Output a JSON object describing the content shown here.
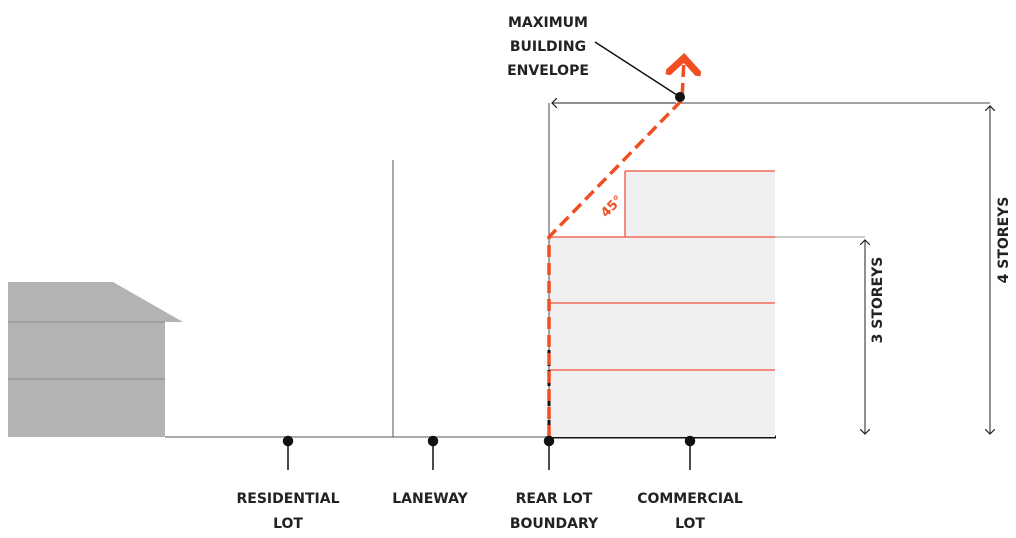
{
  "envelope_label": [
    "MAXIMUM",
    "BUILDING",
    "ENVELOPE"
  ],
  "angle_label": "45°",
  "storeys_3": "3 STOREYS",
  "storeys_4": "4 STOREYS",
  "ground_labels": [
    {
      "lines": [
        "RESIDENTIAL",
        "LOT"
      ]
    },
    {
      "lines": [
        "LANEWAY"
      ]
    },
    {
      "lines": [
        "REAR LOT",
        "BOUNDARY"
      ]
    },
    {
      "lines": [
        "COMMERCIAL",
        "LOT"
      ]
    }
  ]
}
